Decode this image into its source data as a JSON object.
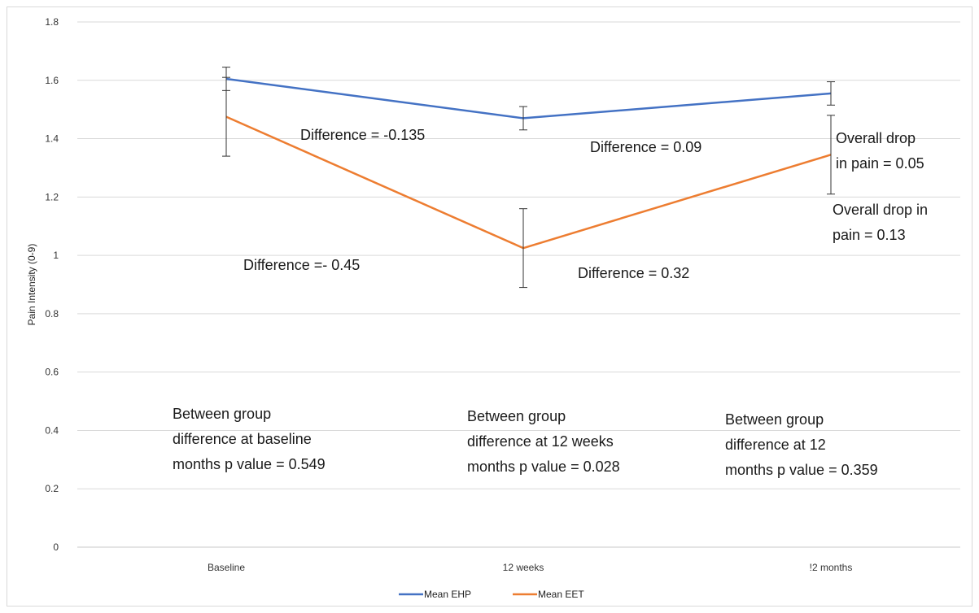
{
  "chart_data": {
    "type": "line",
    "ylabel": "Pain Intensity (0-9)",
    "xlabel": "",
    "title": "",
    "ylim": [
      0,
      1.8
    ],
    "yticks": [
      0,
      0.2,
      0.4,
      0.6,
      0.8,
      1,
      1.2,
      1.4,
      1.6,
      1.8
    ],
    "categories": [
      "Baseline",
      "12 weeks",
      "!2 months"
    ],
    "grid": "horizontal",
    "legend_position": "bottom",
    "series": [
      {
        "name": "Mean EHP",
        "color": "#4472C4",
        "values": [
          1.605,
          1.47,
          1.555
        ],
        "error": [
          0.04,
          0.04,
          0.04
        ]
      },
      {
        "name": "Mean EET",
        "color": "#ED7D31",
        "values": [
          1.475,
          1.025,
          1.345
        ],
        "error": [
          0.135,
          0.135,
          0.135
        ]
      }
    ],
    "annotations": [
      {
        "lines": [
          "Difference = -0.135"
        ]
      },
      {
        "lines": [
          "Difference = 0.09"
        ]
      },
      {
        "lines": [
          "Overall drop",
          "in pain = 0.05"
        ]
      },
      {
        "lines": [
          "Overall drop in",
          "pain = 0.13"
        ]
      },
      {
        "lines": [
          "Difference =- 0.45"
        ]
      },
      {
        "lines": [
          "Difference = 0.32"
        ]
      },
      {
        "lines": [
          "Between group",
          "difference at baseline",
          "months p value = 0.549"
        ]
      },
      {
        "lines": [
          "Between group",
          "difference at 12 weeks",
          "months p value = 0.028"
        ]
      },
      {
        "lines": [
          "Between group",
          "difference at 12",
          "months p value = 0.359"
        ]
      }
    ]
  }
}
